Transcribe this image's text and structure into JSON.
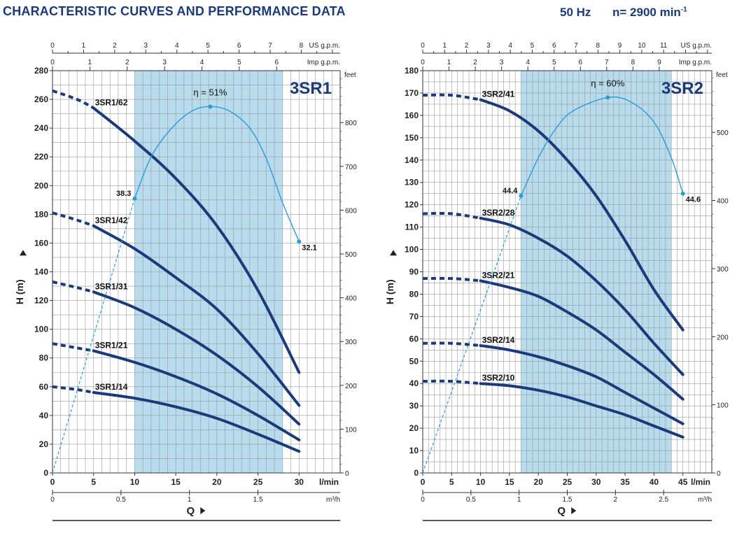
{
  "header": {
    "title": "CHARACTERISTIC CURVES AND PERFORMANCE DATA",
    "frequency": "50 Hz",
    "speed": "n= 2900 min",
    "speed_exp": "-1"
  },
  "colors": {
    "curve": "#1b3a7a",
    "efficiency": "#2b9cd8",
    "band": "#b8dced",
    "grid": "#9a9a9a",
    "text": "#1b3a7a"
  },
  "chart_data": [
    {
      "type": "line",
      "title": "3SR1",
      "ylabel": "H  (m)",
      "xlabel": "Q",
      "x_unit": "l/min",
      "x2_unit": "m³/h",
      "x3_unit": "US g.p.m.",
      "x4_unit": "Imp g.p.m.",
      "y2_unit": "feet",
      "xlim": [
        0,
        35
      ],
      "ylim": [
        0,
        280
      ],
      "x_ticks": [
        0,
        5,
        10,
        15,
        20,
        25,
        30
      ],
      "y_ticks": [
        0,
        20,
        40,
        60,
        80,
        100,
        120,
        140,
        160,
        180,
        200,
        220,
        240,
        260,
        280
      ],
      "m3h_ticks": [
        0,
        0.5,
        1,
        1.5
      ],
      "us_gpm_ticks": [
        0,
        1,
        2,
        3,
        4,
        5,
        6,
        7,
        8
      ],
      "imp_gpm_ticks": [
        0,
        1,
        2,
        3,
        4,
        5,
        6
      ],
      "feet_ticks": [
        0,
        100,
        200,
        300,
        400,
        500,
        600,
        700,
        800
      ],
      "band": [
        10,
        28
      ],
      "series": [
        {
          "name": "3SR1/62",
          "dashed": [
            [
              0,
              266
            ],
            [
              3,
              260
            ],
            [
              5,
              254
            ]
          ],
          "solid": [
            [
              5,
              254
            ],
            [
              10,
              231
            ],
            [
              15,
              205
            ],
            [
              20,
              172
            ],
            [
              25,
              127
            ],
            [
              30,
              70
            ]
          ]
        },
        {
          "name": "3SR1/42",
          "dashed": [
            [
              0,
              181
            ],
            [
              3,
              176
            ],
            [
              5,
              172
            ]
          ],
          "solid": [
            [
              5,
              172
            ],
            [
              10,
              156
            ],
            [
              15,
              136
            ],
            [
              20,
              114
            ],
            [
              25,
              83
            ],
            [
              30,
              47
            ]
          ]
        },
        {
          "name": "3SR1/31",
          "dashed": [
            [
              0,
              133
            ],
            [
              3,
              129
            ],
            [
              5,
              126
            ]
          ],
          "solid": [
            [
              5,
              126
            ],
            [
              10,
              115
            ],
            [
              15,
              100
            ],
            [
              20,
              82
            ],
            [
              25,
              60
            ],
            [
              30,
              34
            ]
          ]
        },
        {
          "name": "3SR1/21",
          "dashed": [
            [
              0,
              90
            ],
            [
              3,
              87
            ],
            [
              5,
              85
            ]
          ],
          "solid": [
            [
              5,
              85
            ],
            [
              10,
              77
            ],
            [
              15,
              67
            ],
            [
              20,
              55
            ],
            [
              25,
              40
            ],
            [
              30,
              23
            ]
          ]
        },
        {
          "name": "3SR1/14",
          "dashed": [
            [
              0,
              60
            ],
            [
              3,
              58
            ],
            [
              5,
              56
            ]
          ],
          "solid": [
            [
              5,
              56
            ],
            [
              10,
              52
            ],
            [
              15,
              46
            ],
            [
              20,
              38
            ],
            [
              25,
              27
            ],
            [
              30,
              15
            ]
          ]
        }
      ],
      "efficiency": {
        "label": "η = 51%",
        "points": [
          [
            10,
            191
          ],
          [
            12,
            220
          ],
          [
            14.5,
            240
          ],
          [
            17,
            252
          ],
          [
            19.2,
            255
          ],
          [
            21.5,
            252
          ],
          [
            24,
            240
          ],
          [
            26,
            219
          ],
          [
            28,
            188
          ],
          [
            30,
            161
          ]
        ],
        "dashed": [
          [
            0,
            0
          ],
          [
            10,
            191
          ]
        ],
        "markers": [
          {
            "x": 10,
            "y": 191,
            "label": "38.3"
          },
          {
            "x": 19.2,
            "y": 255,
            "label": ""
          },
          {
            "x": 30,
            "y": 161,
            "label": "32.1"
          }
        ]
      }
    },
    {
      "type": "line",
      "title": "3SR2",
      "ylabel": "H  (m)",
      "xlabel": "Q",
      "x_unit": "l/min",
      "x2_unit": "m³/h",
      "x3_unit": "US g.p.m.",
      "x4_unit": "Imp g.p.m.",
      "y2_unit": "feet",
      "xlim": [
        0,
        50
      ],
      "ylim": [
        0,
        180
      ],
      "x_ticks": [
        0,
        5,
        10,
        15,
        20,
        25,
        30,
        35,
        40,
        45
      ],
      "y_ticks": [
        0,
        10,
        20,
        30,
        40,
        50,
        60,
        70,
        80,
        90,
        100,
        110,
        120,
        130,
        140,
        150,
        160,
        170,
        180
      ],
      "m3h_ticks": [
        0,
        0.5,
        1,
        1.5,
        2,
        2.5
      ],
      "us_gpm_ticks": [
        0,
        1,
        2,
        3,
        4,
        5,
        6,
        7,
        8,
        9,
        10,
        11
      ],
      "imp_gpm_ticks": [
        0,
        1,
        2,
        3,
        4,
        5,
        6,
        7,
        8,
        9
      ],
      "feet_ticks": [
        0,
        100,
        200,
        300,
        400,
        500
      ],
      "band": [
        17,
        43
      ],
      "series": [
        {
          "name": "3SR2/41",
          "dashed": [
            [
              0,
              169
            ],
            [
              5,
              169
            ],
            [
              10,
              167
            ]
          ],
          "solid": [
            [
              10,
              167
            ],
            [
              15,
              162
            ],
            [
              20,
              153
            ],
            [
              25,
              140
            ],
            [
              30,
              124
            ],
            [
              35,
              104
            ],
            [
              40,
              82
            ],
            [
              45,
              64
            ]
          ]
        },
        {
          "name": "3SR2/28",
          "dashed": [
            [
              0,
              116
            ],
            [
              5,
              116
            ],
            [
              10,
              114
            ]
          ],
          "solid": [
            [
              10,
              114
            ],
            [
              15,
              111
            ],
            [
              20,
              105
            ],
            [
              25,
              97
            ],
            [
              30,
              86
            ],
            [
              35,
              73
            ],
            [
              40,
              58
            ],
            [
              45,
              44
            ]
          ]
        },
        {
          "name": "3SR2/21",
          "dashed": [
            [
              0,
              87
            ],
            [
              5,
              87
            ],
            [
              10,
              86
            ]
          ],
          "solid": [
            [
              10,
              86
            ],
            [
              15,
              83
            ],
            [
              20,
              79
            ],
            [
              25,
              72
            ],
            [
              30,
              64
            ],
            [
              35,
              54
            ],
            [
              40,
              44
            ],
            [
              45,
              33
            ]
          ]
        },
        {
          "name": "3SR2/14",
          "dashed": [
            [
              0,
              58
            ],
            [
              5,
              58
            ],
            [
              10,
              57
            ]
          ],
          "solid": [
            [
              10,
              57
            ],
            [
              15,
              55
            ],
            [
              20,
              52
            ],
            [
              25,
              48
            ],
            [
              30,
              43
            ],
            [
              35,
              36
            ],
            [
              40,
              29
            ],
            [
              45,
              22
            ]
          ]
        },
        {
          "name": "3SR2/10",
          "dashed": [
            [
              0,
              41
            ],
            [
              5,
              41
            ],
            [
              10,
              40
            ]
          ],
          "solid": [
            [
              10,
              40
            ],
            [
              15,
              39
            ],
            [
              20,
              37
            ],
            [
              25,
              34
            ],
            [
              30,
              30
            ],
            [
              35,
              26
            ],
            [
              40,
              21
            ],
            [
              45,
              16
            ]
          ]
        }
      ],
      "efficiency": {
        "label": "η = 60%",
        "points": [
          [
            17,
            124
          ],
          [
            20,
            141
          ],
          [
            23,
            154
          ],
          [
            26,
            162
          ],
          [
            32,
            168
          ],
          [
            36,
            166
          ],
          [
            40,
            157
          ],
          [
            43,
            141
          ],
          [
            45,
            125
          ]
        ],
        "dashed": [
          [
            0,
            0
          ],
          [
            17,
            124
          ]
        ],
        "markers": [
          {
            "x": 17,
            "y": 124,
            "label": "44.4"
          },
          {
            "x": 32,
            "y": 168,
            "label": ""
          },
          {
            "x": 45,
            "y": 125,
            "label": "44.6"
          }
        ]
      }
    }
  ]
}
